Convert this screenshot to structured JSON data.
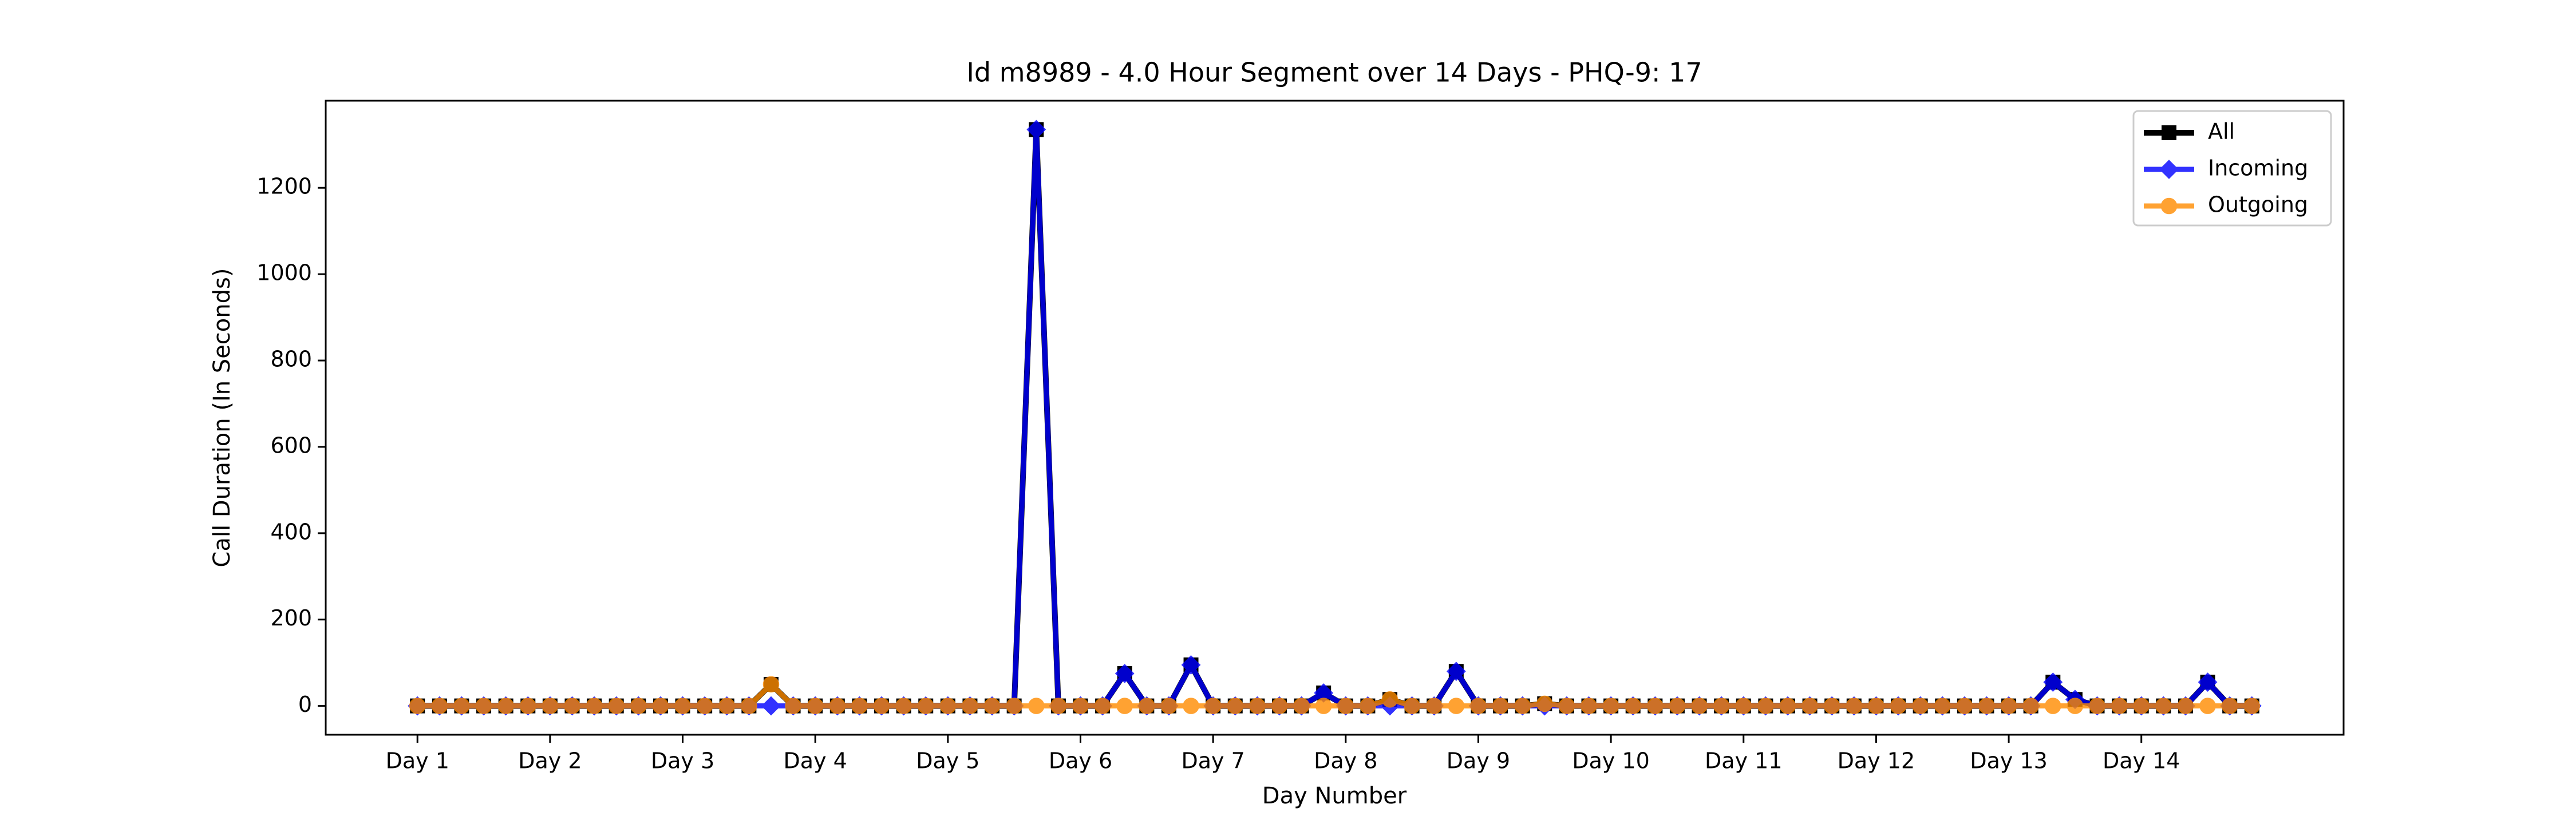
{
  "chart_data": {
    "type": "line",
    "title": "Id m8989 - 4.0 Hour Segment over 14 Days - PHQ-9: 17",
    "xlabel": "Day Number",
    "ylabel": "Call Duration (In Seconds)",
    "x": [
      0,
      1,
      2,
      3,
      4,
      5,
      6,
      7,
      8,
      9,
      10,
      11,
      12,
      13,
      14,
      15,
      16,
      17,
      18,
      19,
      20,
      21,
      22,
      23,
      24,
      25,
      26,
      27,
      28,
      29,
      30,
      31,
      32,
      33,
      34,
      35,
      36,
      37,
      38,
      39,
      40,
      41,
      42,
      43,
      44,
      45,
      46,
      47,
      48,
      49,
      50,
      51,
      52,
      53,
      54,
      55,
      56,
      57,
      58,
      59,
      60,
      61,
      62,
      63,
      64,
      65,
      66,
      67,
      68,
      69,
      70,
      71,
      72,
      73,
      74,
      75,
      76,
      77,
      78,
      79,
      80,
      81,
      82,
      83
    ],
    "series": [
      {
        "name": "All",
        "color": "#000000",
        "marker": "square",
        "values": [
          0,
          0,
          0,
          0,
          0,
          0,
          0,
          0,
          0,
          0,
          0,
          0,
          0,
          0,
          0,
          0,
          50,
          0,
          0,
          0,
          0,
          0,
          0,
          0,
          0,
          0,
          0,
          0,
          1335,
          0,
          0,
          0,
          75,
          0,
          0,
          95,
          0,
          0,
          0,
          0,
          0,
          30,
          0,
          0,
          15,
          0,
          0,
          80,
          0,
          0,
          0,
          5,
          0,
          0,
          0,
          0,
          0,
          0,
          0,
          0,
          0,
          0,
          0,
          0,
          0,
          0,
          0,
          0,
          0,
          0,
          0,
          0,
          0,
          0,
          55,
          15,
          0,
          0,
          0,
          0,
          0,
          55,
          0,
          0
        ]
      },
      {
        "name": "Incoming",
        "color": "#0000ff",
        "marker": "diamond",
        "values": [
          0,
          0,
          0,
          0,
          0,
          0,
          0,
          0,
          0,
          0,
          0,
          0,
          0,
          0,
          0,
          0,
          0,
          0,
          0,
          0,
          0,
          0,
          0,
          0,
          0,
          0,
          0,
          0,
          1335,
          0,
          0,
          0,
          75,
          0,
          0,
          95,
          0,
          0,
          0,
          0,
          0,
          30,
          0,
          0,
          0,
          0,
          0,
          80,
          0,
          0,
          0,
          0,
          0,
          0,
          0,
          0,
          0,
          0,
          0,
          0,
          0,
          0,
          0,
          0,
          0,
          0,
          0,
          0,
          0,
          0,
          0,
          0,
          0,
          0,
          55,
          15,
          0,
          0,
          0,
          0,
          0,
          55,
          0,
          0
        ]
      },
      {
        "name": "Outgoing",
        "color": "#ff8c00",
        "marker": "circle",
        "values": [
          0,
          0,
          0,
          0,
          0,
          0,
          0,
          0,
          0,
          0,
          0,
          0,
          0,
          0,
          0,
          0,
          50,
          0,
          0,
          0,
          0,
          0,
          0,
          0,
          0,
          0,
          0,
          0,
          0,
          0,
          0,
          0,
          0,
          0,
          0,
          0,
          0,
          0,
          0,
          0,
          0,
          0,
          0,
          0,
          15,
          0,
          0,
          0,
          0,
          0,
          0,
          5,
          0,
          0,
          0,
          0,
          0,
          0,
          0,
          0,
          0,
          0,
          0,
          0,
          0,
          0,
          0,
          0,
          0,
          0,
          0,
          0,
          0,
          0,
          0,
          0,
          0,
          0,
          0,
          0,
          0,
          0,
          0,
          0
        ]
      }
    ],
    "xlim": [
      -4.15,
      87.15
    ],
    "xticks": [
      {
        "value": 0,
        "label": "Day 1"
      },
      {
        "value": 6,
        "label": "Day 2"
      },
      {
        "value": 12,
        "label": "Day 3"
      },
      {
        "value": 18,
        "label": "Day 4"
      },
      {
        "value": 24,
        "label": "Day 5"
      },
      {
        "value": 30,
        "label": "Day 6"
      },
      {
        "value": 36,
        "label": "Day 7"
      },
      {
        "value": 42,
        "label": "Day 8"
      },
      {
        "value": 48,
        "label": "Day 9"
      },
      {
        "value": 54,
        "label": "Day 10"
      },
      {
        "value": 60,
        "label": "Day 11"
      },
      {
        "value": 66,
        "label": "Day 12"
      },
      {
        "value": 72,
        "label": "Day 13"
      },
      {
        "value": 78,
        "label": "Day 14"
      }
    ],
    "ylim": [
      -66.75,
      1401.75
    ],
    "yticks": [
      0,
      200,
      400,
      600,
      800,
      1000,
      1200
    ],
    "legend": "upper right"
  }
}
